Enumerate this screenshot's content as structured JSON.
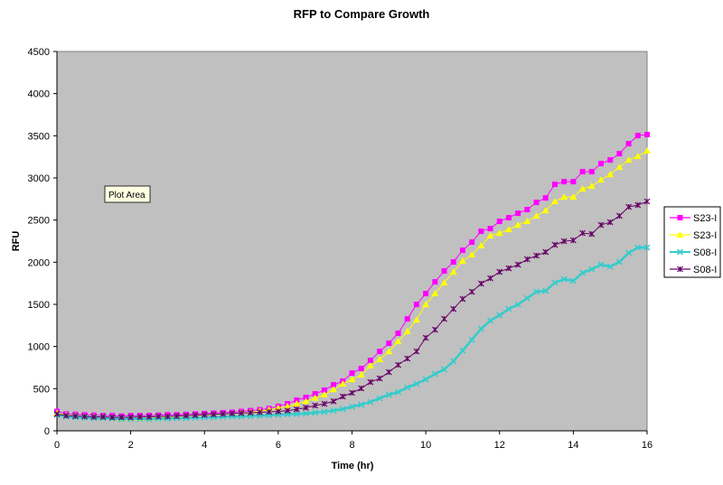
{
  "tooltip": "Plot Area",
  "chart_data": {
    "type": "line",
    "title": "RFP to Compare Growth",
    "xlabel": "Time (hr)",
    "ylabel": "RFU",
    "xlim": [
      0,
      16
    ],
    "ylim": [
      0,
      4500
    ],
    "x_ticks": [
      "0",
      "2",
      "4",
      "6",
      "8",
      "10",
      "12",
      "14",
      "16"
    ],
    "y_ticks": [
      "0",
      "500",
      "1000",
      "1500",
      "2000",
      "2500",
      "3000",
      "3500",
      "4000",
      "4500"
    ],
    "grid": false,
    "legend_position": "right",
    "plot_background": "#C0C0C0",
    "x": [
      0,
      0.25,
      0.5,
      0.75,
      1,
      1.25,
      1.5,
      1.75,
      2,
      2.25,
      2.5,
      2.75,
      3,
      3.25,
      3.5,
      3.75,
      4,
      4.25,
      4.5,
      4.75,
      5,
      5.25,
      5.5,
      5.75,
      6,
      6.25,
      6.5,
      6.75,
      7,
      7.25,
      7.5,
      7.75,
      8,
      8.25,
      8.5,
      8.75,
      9,
      9.25,
      9.5,
      9.75,
      10,
      10.25,
      10.5,
      10.75,
      11,
      11.25,
      11.5,
      11.75,
      12,
      12.25,
      12.5,
      12.75,
      13,
      13.25,
      13.5,
      13.75,
      14,
      14.25,
      14.5,
      14.75,
      15,
      15.25,
      15.5,
      15.75,
      16
    ],
    "series": [
      {
        "name": "S23-I",
        "color": "#FF00FF",
        "marker": "square",
        "values": [
          230,
          200,
          195,
          190,
          185,
          180,
          180,
          175,
          180,
          180,
          182,
          185,
          190,
          190,
          195,
          200,
          205,
          210,
          215,
          220,
          230,
          240,
          250,
          265,
          290,
          321,
          364,
          396,
          439,
          482,
          546,
          589,
          685,
          739,
          835,
          942,
          1039,
          1157,
          1328,
          1499,
          1628,
          1767,
          1896,
          2003,
          2142,
          2238,
          2367,
          2399,
          2485,
          2528,
          2581,
          2624,
          2710,
          2763,
          2924,
          2956,
          2956,
          3074,
          3074,
          3170,
          3213,
          3288,
          3406,
          3502,
          3514
        ]
      },
      {
        "name": "S23-I",
        "color": "#FFFF00",
        "marker": "triangle",
        "values": [
          210,
          185,
          175,
          170,
          165,
          160,
          155,
          150,
          150,
          150,
          155,
          160,
          165,
          170,
          175,
          180,
          185,
          190,
          195,
          200,
          210,
          220,
          235,
          250,
          270,
          290,
          320,
          350,
          390,
          430,
          490,
          557,
          610,
          664,
          771,
          846,
          942,
          1060,
          1178,
          1317,
          1499,
          1628,
          1756,
          1885,
          2014,
          2089,
          2196,
          2313,
          2345,
          2388,
          2442,
          2485,
          2549,
          2613,
          2720,
          2774,
          2774,
          2870,
          2902,
          2977,
          3042,
          3127,
          3213,
          3256,
          3320
        ]
      },
      {
        "name": "S08-I",
        "color": "#33CCCC",
        "marker": "x",
        "values": [
          190,
          170,
          160,
          155,
          150,
          150,
          145,
          140,
          140,
          140,
          140,
          145,
          145,
          150,
          150,
          155,
          160,
          160,
          165,
          170,
          170,
          175,
          180,
          185,
          190,
          195,
          200,
          205,
          215,
          225,
          240,
          257,
          285,
          310,
          343,
          386,
          428,
          460,
          514,
          557,
          610,
          675,
          728,
          825,
          953,
          1081,
          1210,
          1307,
          1371,
          1446,
          1499,
          1574,
          1649,
          1660,
          1756,
          1799,
          1778,
          1874,
          1917,
          1971,
          1949,
          2003,
          2110,
          2174,
          2174
        ]
      },
      {
        "name": "S08-I",
        "color": "#660066",
        "marker": "star",
        "values": [
          200,
          180,
          175,
          170,
          165,
          165,
          160,
          160,
          160,
          165,
          165,
          170,
          170,
          175,
          180,
          185,
          190,
          195,
          200,
          205,
          210,
          215,
          220,
          225,
          230,
          240,
          255,
          275,
          300,
          320,
          350,
          407,
          450,
          503,
          578,
          621,
          696,
          782,
          857,
          942,
          1103,
          1199,
          1328,
          1446,
          1564,
          1649,
          1746,
          1810,
          1885,
          1928,
          1971,
          2035,
          2078,
          2121,
          2206,
          2249,
          2260,
          2345,
          2335,
          2442,
          2474,
          2549,
          2656,
          2678,
          2720
        ]
      }
    ]
  }
}
